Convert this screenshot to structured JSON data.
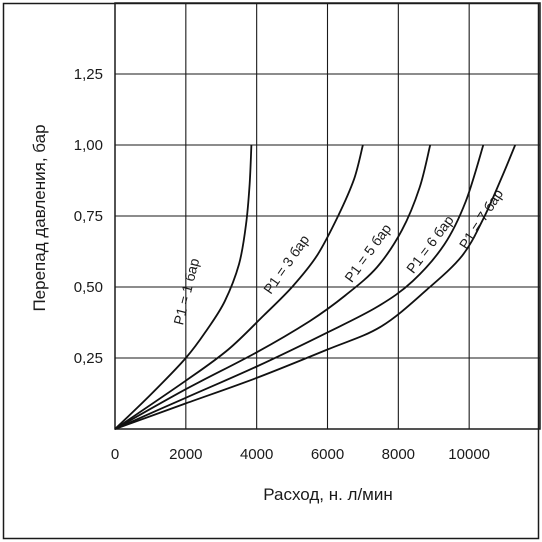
{
  "chart_data": {
    "type": "line",
    "title": "",
    "xlabel": "Расход, н. л/мин",
    "ylabel": "Перепад давления, бар",
    "xlim": [
      0,
      12000
    ],
    "ylim": [
      0,
      1.5
    ],
    "grid": true,
    "x_ticks": [
      {
        "value": 0,
        "label": "0"
      },
      {
        "value": 2000,
        "label": "2000"
      },
      {
        "value": 4000,
        "label": "4000"
      },
      {
        "value": 6000,
        "label": "6000"
      },
      {
        "value": 8000,
        "label": "8000"
      },
      {
        "value": 10000,
        "label": "10000"
      }
    ],
    "y_ticks": [
      {
        "value": 0.25,
        "label": "0,25"
      },
      {
        "value": 0.5,
        "label": "0,50"
      },
      {
        "value": 0.75,
        "label": "0,75"
      },
      {
        "value": 1.0,
        "label": "1,00"
      },
      {
        "value": 1.25,
        "label": "1,25"
      }
    ],
    "series": [
      {
        "name": "P1 = 1 бар",
        "x": [
          0,
          1000,
          2000,
          2600,
          3100,
          3500,
          3700,
          3800,
          3850
        ],
        "y": [
          0,
          0.12,
          0.25,
          0.35,
          0.45,
          0.58,
          0.72,
          0.86,
          1.0
        ]
      },
      {
        "name": "P1 = 3 бар",
        "x": [
          0,
          2000,
          3200,
          4200,
          5000,
          5700,
          6300,
          6750,
          7000
        ],
        "y": [
          0,
          0.17,
          0.28,
          0.4,
          0.5,
          0.61,
          0.75,
          0.88,
          1.0
        ]
      },
      {
        "name": "P1 = 5 бар",
        "x": [
          0,
          2000,
          4000,
          5500,
          6500,
          7400,
          8100,
          8600,
          8900
        ],
        "y": [
          0,
          0.14,
          0.27,
          0.38,
          0.47,
          0.57,
          0.7,
          0.85,
          1.0
        ]
      },
      {
        "name": "P1 = 6 бар",
        "x": [
          0,
          2000,
          4000,
          6000,
          7400,
          8400,
          9300,
          9900,
          10400
        ],
        "y": [
          0,
          0.11,
          0.22,
          0.34,
          0.43,
          0.52,
          0.65,
          0.8,
          1.0
        ]
      },
      {
        "name": "P1 = 7 бар",
        "x": [
          0,
          2000,
          4000,
          6000,
          7500,
          8800,
          9800,
          10400,
          10900,
          11300
        ],
        "y": [
          0,
          0.09,
          0.18,
          0.28,
          0.36,
          0.49,
          0.61,
          0.74,
          0.88,
          1.0
        ]
      }
    ],
    "annotations": [
      {
        "text": "P1 = 1 бар",
        "series": 0
      },
      {
        "text": "P1 = 3 бар",
        "series": 1
      },
      {
        "text": "P1 = 5 бар",
        "series": 2
      },
      {
        "text": "P1 = 6 бар",
        "series": 3
      },
      {
        "text": "P1 = 7 бар",
        "series": 4
      }
    ]
  }
}
